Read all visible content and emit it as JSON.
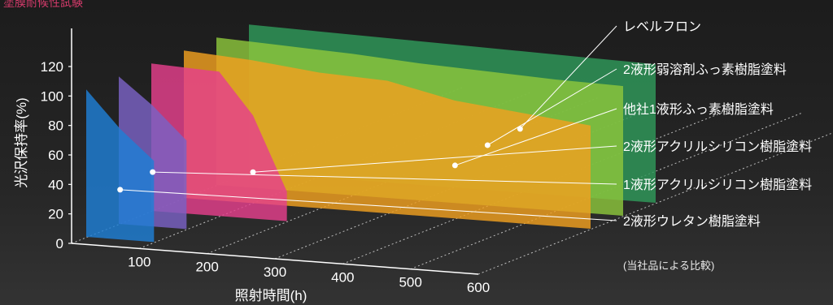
{
  "header_fragment": "塗膜耐候性試験",
  "chart_data": {
    "type": "area",
    "title": "",
    "xlabel": "照射時間(h)",
    "ylabel": "光沢保持率(%)",
    "x_ticks": [
      100,
      200,
      300,
      400,
      500,
      600
    ],
    "y_ticks": [
      0,
      20,
      40,
      60,
      80,
      100,
      120
    ],
    "xlim": [
      0,
      600
    ],
    "ylim": [
      0,
      120
    ],
    "grid": false,
    "legend": "right",
    "note": "(当社品による比較)",
    "series": [
      {
        "name": "2液形ウレタン樹脂塗料",
        "color": "#1f7fd6",
        "x": [
          0,
          50,
          100
        ],
        "y": [
          100,
          75,
          55
        ]
      },
      {
        "name": "1液形アクリルシリコン樹脂塗料",
        "color": "#7a62c4",
        "x": [
          0,
          50,
          100
        ],
        "y": [
          100,
          82,
          60
        ]
      },
      {
        "name": "2液形アクリルシリコン樹脂塗料",
        "color": "#e5408c",
        "x": [
          0,
          100,
          150,
          200
        ],
        "y": [
          100,
          98,
          70,
          20
        ]
      },
      {
        "name": "他社1液形ふっ素樹脂塗料",
        "color": "#f0a020",
        "x": [
          0,
          100,
          200,
          300,
          400,
          500,
          600
        ],
        "y": [
          100,
          97,
          92,
          90,
          80,
          75,
          70
        ]
      },
      {
        "name": "2液形弱溶剤ふっ素樹脂塗料",
        "color": "#8cc63c",
        "x": [
          0,
          100,
          200,
          300,
          400,
          500,
          600
        ],
        "y": [
          100,
          98,
          96,
          93,
          91,
          89,
          88
        ]
      },
      {
        "name": "レベルフロン",
        "color": "#2f9a5a",
        "x": [
          0,
          100,
          200,
          300,
          400,
          500,
          600
        ],
        "y": [
          100,
          99,
          98,
          97,
          96,
          95,
          94
        ]
      }
    ]
  }
}
